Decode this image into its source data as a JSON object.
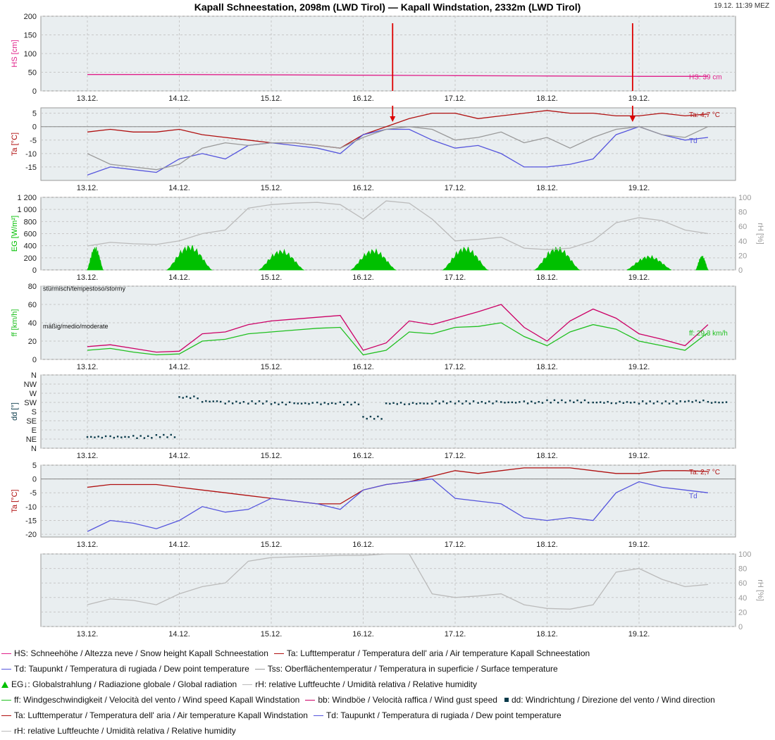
{
  "header": {
    "title": "Kapall Schneestation, 2098m (LWD Tirol) — Kapall Windstation, 2332m (LWD Tirol)",
    "timestamp": "19.12. 11:39 MEZ"
  },
  "colors": {
    "hs": "#e0208a",
    "ta": "#b01010",
    "td": "#5555dd",
    "tss": "#999999",
    "eg": "#00c000",
    "rh": "#bbbbbb",
    "ff": "#20c020",
    "bb": "#cc0066",
    "dd": "#0a3a4a",
    "arrow": "#dd0000",
    "panel_bg": "#e9eef0",
    "grid": "#c8c8c8"
  },
  "chart_data": [
    {
      "id": "hs",
      "type": "line",
      "x_ticks": [
        "13.12.",
        "14.12.",
        "15.12.",
        "16.12.",
        "17.12.",
        "18.12.",
        "19.12."
      ],
      "ylabel": "HS [cm]",
      "ylim": [
        0,
        200
      ],
      "y_ticks": [
        0,
        50,
        100,
        150,
        200
      ],
      "series": [
        {
          "key": "hs",
          "name": "HS",
          "x": [
            0.0,
            1.0,
            2.0,
            3.0,
            4.0,
            5.0,
            6.0,
            6.75
          ],
          "values": [
            44,
            44,
            43,
            42,
            41,
            40,
            39,
            39
          ]
        }
      ],
      "end_labels": [
        {
          "series": "hs",
          "text": "HS: 39 cm"
        }
      ],
      "arrows_x": [
        3.32,
        5.93
      ]
    },
    {
      "id": "ta1",
      "type": "line",
      "x_ticks": [
        "13.12.",
        "14.12.",
        "15.12.",
        "16.12.",
        "17.12.",
        "18.12.",
        "19.12."
      ],
      "ylabel": "Ta [°C]",
      "ylim": [
        -20,
        7
      ],
      "y_ticks": [
        5,
        0,
        -5,
        -10,
        -15
      ],
      "series": [
        {
          "key": "ta",
          "name": "Ta",
          "x": [
            0.0,
            0.25,
            0.5,
            0.75,
            1.0,
            1.25,
            1.5,
            1.75,
            2.0,
            2.25,
            2.5,
            2.75,
            3.0,
            3.25,
            3.5,
            3.75,
            4.0,
            4.25,
            4.5,
            4.75,
            5.0,
            5.25,
            5.5,
            5.75,
            6.0,
            6.25,
            6.5,
            6.75
          ],
          "values": [
            -2,
            -1,
            -2,
            -2,
            -1,
            -3,
            -4,
            -5,
            -6,
            -6,
            -7,
            -8,
            -3,
            0,
            3,
            5,
            5,
            3,
            4,
            5,
            6,
            5,
            5,
            4,
            4,
            5,
            4,
            4.7
          ]
        },
        {
          "key": "td",
          "name": "Td",
          "x": [
            0.0,
            0.25,
            0.5,
            0.75,
            1.0,
            1.25,
            1.5,
            1.75,
            2.0,
            2.25,
            2.5,
            2.75,
            3.0,
            3.25,
            3.5,
            3.75,
            4.0,
            4.25,
            4.5,
            4.75,
            5.0,
            5.25,
            5.5,
            5.75,
            6.0,
            6.25,
            6.5,
            6.75
          ],
          "values": [
            -18,
            -15,
            -16,
            -17,
            -12,
            -10,
            -12,
            -7,
            -6,
            -7,
            -8,
            -10,
            -3,
            -1,
            -1,
            -5,
            -8,
            -7,
            -10,
            -15,
            -15,
            -14,
            -12,
            -3,
            0,
            -3,
            -5,
            -4
          ]
        },
        {
          "key": "tss",
          "name": "Tss",
          "x": [
            0.0,
            0.25,
            0.5,
            0.75,
            1.0,
            1.25,
            1.5,
            1.75,
            2.0,
            2.25,
            2.5,
            2.75,
            3.0,
            3.25,
            3.5,
            3.75,
            4.0,
            4.25,
            4.5,
            4.75,
            5.0,
            5.25,
            5.5,
            5.75,
            6.0,
            6.25,
            6.5,
            6.75
          ],
          "values": [
            -10,
            -14,
            -15,
            -16,
            -14,
            -8,
            -6,
            -7,
            -6,
            -6,
            -7,
            -8,
            -4,
            -1,
            0,
            -1,
            -5,
            -4,
            -2,
            -6,
            -4,
            -8,
            -4,
            -1,
            0,
            -3,
            -4,
            0
          ]
        }
      ],
      "end_labels": [
        {
          "series": "ta",
          "text": "Ta: 4,7 °C"
        },
        {
          "series": "td",
          "text": "Td"
        }
      ],
      "arrows_x": [
        3.32,
        5.93
      ]
    },
    {
      "id": "eg",
      "type": "area",
      "x_ticks": [
        "13.12.",
        "14.12.",
        "15.12.",
        "16.12.",
        "17.12.",
        "18.12.",
        "19.12."
      ],
      "ylabel": "EG [W/m²]",
      "ylim": [
        0,
        1200
      ],
      "y_ticks": [
        0,
        200,
        400,
        600,
        800,
        1000,
        1200
      ],
      "y_tick_labels": [
        "0",
        "200",
        "400",
        "600",
        "800",
        "1 000",
        "1 200"
      ],
      "y2label": "rH [%]",
      "y2lim": [
        0,
        100
      ],
      "y2_ticks": [
        0,
        20,
        40,
        60,
        80,
        100
      ],
      "eg_peaks": [
        {
          "start": 0.0,
          "end": 0.17,
          "peak": 390
        },
        {
          "start": 0.87,
          "end": 1.35,
          "peak": 420
        },
        {
          "start": 1.87,
          "end": 2.35,
          "peak": 340
        },
        {
          "start": 2.87,
          "end": 3.35,
          "peak": 350
        },
        {
          "start": 3.87,
          "end": 4.35,
          "peak": 390
        },
        {
          "start": 4.87,
          "end": 5.35,
          "peak": 390
        },
        {
          "start": 5.87,
          "end": 6.35,
          "peak": 240
        },
        {
          "start": 6.62,
          "end": 6.75,
          "peak": 240
        }
      ],
      "series": [
        {
          "key": "rh",
          "name": "rH",
          "x": [
            0.0,
            0.25,
            0.5,
            0.75,
            1.0,
            1.25,
            1.5,
            1.75,
            2.0,
            2.25,
            2.5,
            2.75,
            3.0,
            3.25,
            3.5,
            3.75,
            4.0,
            4.25,
            4.5,
            4.75,
            5.0,
            5.25,
            5.5,
            5.75,
            6.0,
            6.25,
            6.5,
            6.75
          ],
          "values": [
            33,
            38,
            36,
            35,
            40,
            50,
            55,
            85,
            90,
            92,
            93,
            90,
            70,
            95,
            92,
            70,
            40,
            42,
            45,
            30,
            28,
            30,
            40,
            65,
            72,
            68,
            55,
            50
          ]
        }
      ]
    },
    {
      "id": "ff",
      "type": "line",
      "x_ticks": [
        "13.12.",
        "14.12.",
        "15.12.",
        "16.12.",
        "17.12.",
        "18.12.",
        "19.12."
      ],
      "ylabel": "ff [km/h]",
      "ylim": [
        0,
        80
      ],
      "y_ticks": [
        0,
        20,
        40,
        60,
        80
      ],
      "annotations": [
        {
          "text": "stürmisch/tempestoso/stormy",
          "y": 75
        },
        {
          "text": "mäßig/medio/moderate",
          "y": 34
        }
      ],
      "series": [
        {
          "key": "ff",
          "name": "ff",
          "x": [
            0.0,
            0.25,
            0.5,
            0.75,
            1.0,
            1.25,
            1.5,
            1.75,
            2.0,
            2.25,
            2.5,
            2.75,
            3.0,
            3.25,
            3.5,
            3.75,
            4.0,
            4.25,
            4.5,
            4.75,
            5.0,
            5.25,
            5.5,
            5.75,
            6.0,
            6.25,
            6.5,
            6.75
          ],
          "values": [
            10,
            12,
            8,
            5,
            6,
            20,
            22,
            28,
            30,
            32,
            34,
            35,
            5,
            10,
            30,
            28,
            35,
            36,
            40,
            25,
            15,
            30,
            38,
            33,
            20,
            15,
            10,
            29.3
          ]
        },
        {
          "key": "bb",
          "name": "bb",
          "x": [
            0.0,
            0.25,
            0.5,
            0.75,
            1.0,
            1.25,
            1.5,
            1.75,
            2.0,
            2.25,
            2.5,
            2.75,
            3.0,
            3.25,
            3.5,
            3.75,
            4.0,
            4.25,
            4.5,
            4.75,
            5.0,
            5.25,
            5.5,
            5.75,
            6.0,
            6.25,
            6.5,
            6.75
          ],
          "values": [
            14,
            16,
            12,
            8,
            9,
            28,
            30,
            38,
            42,
            44,
            46,
            48,
            10,
            18,
            42,
            38,
            45,
            52,
            60,
            35,
            20,
            42,
            55,
            45,
            28,
            22,
            15,
            38
          ]
        }
      ],
      "end_labels": [
        {
          "series": "ff",
          "text": "ff: 29,3 km/h"
        }
      ]
    },
    {
      "id": "dd",
      "type": "scatter",
      "x_ticks": [
        "13.12.",
        "14.12.",
        "15.12.",
        "16.12.",
        "17.12.",
        "18.12.",
        "19.12."
      ],
      "ylabel": "dd [°]",
      "ylim": [
        0,
        360
      ],
      "y_ticks": [
        0,
        45,
        90,
        135,
        180,
        225,
        270,
        315,
        360
      ],
      "y_tick_labels": [
        "N",
        "NE",
        "E",
        "SE",
        "S",
        "SW",
        "W",
        "NW",
        "N"
      ],
      "series": [
        {
          "key": "dd",
          "name": "dd",
          "x": [
            0.0,
            0.25,
            0.5,
            0.75,
            1.0,
            1.25,
            1.5,
            1.75,
            2.0,
            2.25,
            2.5,
            2.75,
            3.0,
            3.25,
            3.5,
            3.75,
            4.0,
            4.25,
            4.5,
            4.75,
            5.0,
            5.25,
            5.5,
            5.75,
            6.0,
            6.25,
            6.5,
            6.75
          ],
          "values": [
            55,
            55,
            55,
            60,
            250,
            230,
            225,
            225,
            220,
            220,
            220,
            220,
            150,
            220,
            220,
            225,
            225,
            225,
            225,
            225,
            230,
            230,
            225,
            225,
            225,
            225,
            230,
            225
          ]
        }
      ]
    },
    {
      "id": "ta2",
      "type": "line",
      "x_ticks": [
        "13.12.",
        "14.12.",
        "15.12.",
        "16.12.",
        "17.12.",
        "18.12.",
        "19.12."
      ],
      "ylabel": "Ta [°C]",
      "ylim": [
        -21,
        5
      ],
      "y_ticks": [
        5,
        0,
        -5,
        -10,
        -15,
        -20
      ],
      "series": [
        {
          "key": "ta",
          "name": "Ta",
          "x": [
            0.0,
            0.25,
            0.5,
            0.75,
            1.0,
            1.25,
            1.5,
            1.75,
            2.0,
            2.25,
            2.5,
            2.75,
            3.0,
            3.25,
            3.5,
            3.75,
            4.0,
            4.25,
            4.5,
            4.75,
            5.0,
            5.25,
            5.5,
            5.75,
            6.0,
            6.25,
            6.5,
            6.75
          ],
          "values": [
            -3,
            -2,
            -2,
            -2,
            -3,
            -4,
            -5,
            -6,
            -7,
            -8,
            -9,
            -9,
            -4,
            -2,
            -1,
            1,
            3,
            2,
            3,
            4,
            4,
            4,
            3,
            2,
            2,
            3,
            3,
            2.7
          ]
        },
        {
          "key": "td",
          "name": "Td",
          "x": [
            0.0,
            0.25,
            0.5,
            0.75,
            1.0,
            1.25,
            1.5,
            1.75,
            2.0,
            2.25,
            2.5,
            2.75,
            3.0,
            3.25,
            3.5,
            3.75,
            4.0,
            4.25,
            4.5,
            4.75,
            5.0,
            5.25,
            5.5,
            5.75,
            6.0,
            6.25,
            6.5,
            6.75
          ],
          "values": [
            -19,
            -15,
            -16,
            -18,
            -15,
            -10,
            -12,
            -11,
            -7,
            -8,
            -9,
            -11,
            -4,
            -2,
            -1,
            0,
            -7,
            -8,
            -9,
            -14,
            -15,
            -14,
            -15,
            -5,
            -1,
            -3,
            -4,
            -5
          ]
        }
      ],
      "end_labels": [
        {
          "series": "ta",
          "text": "Ta: 2,7 °C"
        },
        {
          "series": "td",
          "text": "Td"
        }
      ]
    },
    {
      "id": "rh",
      "type": "line",
      "x_ticks": [
        "13.12.",
        "14.12.",
        "15.12.",
        "16.12.",
        "17.12.",
        "18.12.",
        "19.12."
      ],
      "y2label": "rH [%]",
      "y2lim": [
        0,
        100
      ],
      "y2_ticks": [
        0,
        20,
        40,
        60,
        80,
        100
      ],
      "series": [
        {
          "key": "rh",
          "name": "rH",
          "x": [
            0.0,
            0.25,
            0.5,
            0.75,
            1.0,
            1.25,
            1.5,
            1.75,
            2.0,
            2.25,
            2.5,
            2.75,
            3.0,
            3.25,
            3.5,
            3.75,
            4.0,
            4.25,
            4.5,
            4.75,
            5.0,
            5.25,
            5.5,
            5.75,
            6.0,
            6.25,
            6.5,
            6.75
          ],
          "values": [
            30,
            38,
            36,
            30,
            45,
            55,
            60,
            90,
            95,
            96,
            97,
            98,
            98,
            100,
            100,
            45,
            40,
            42,
            45,
            30,
            25,
            24,
            30,
            75,
            80,
            65,
            55,
            58
          ]
        }
      ]
    }
  ],
  "legend": {
    "rows": [
      [
        {
          "key": "hs",
          "shape": "line",
          "text": "HS: Schneehöhe / Altezza neve / Snow height  Kapall Schneestation"
        },
        {
          "key": "ta",
          "shape": "line",
          "text": "Ta: Lufttemperatur / Temperatura dell' aria / Air temperature  Kapall Schneestation"
        }
      ],
      [
        {
          "key": "td",
          "shape": "line",
          "text": "Td: Taupunkt / Temperatura di rugiada / Dew point temperature"
        },
        {
          "key": "tss",
          "shape": "line",
          "text": "Tss: Oberflächentemperatur / Temperatura in superficie / Surface temperature"
        }
      ],
      [
        {
          "key": "eg",
          "shape": "triangle",
          "text": "EG↓: Globalstrahlung / Radiazione globale / Global radiation"
        },
        {
          "key": "rh",
          "shape": "line",
          "text": "rH: relative Luftfeuchte / Umidità relativa / Relative humidity"
        }
      ],
      [
        {
          "key": "ff",
          "shape": "line",
          "text": "ff: Windgeschwindigkeit / Velocità del vento / Wind speed  Kapall Windstation"
        },
        {
          "key": "bb",
          "shape": "line",
          "text": "bb: Windböe / Velocità raffica / Wind gust speed"
        },
        {
          "key": "dd",
          "shape": "squares",
          "text": "dd: Windrichtung / Direzione del vento / Wind direction"
        }
      ],
      [
        {
          "key": "ta",
          "shape": "line",
          "text": "Ta: Lufttemperatur / Temperatura dell' aria / Air temperature  Kapall Windstation"
        },
        {
          "key": "td",
          "shape": "line",
          "text": "Td: Taupunkt / Temperatura di rugiada / Dew point temperature"
        }
      ],
      [
        {
          "key": "rh",
          "shape": "line",
          "text": "rH: relative Luftfeuchte / Umidità relativa / Relative humidity"
        }
      ]
    ]
  }
}
